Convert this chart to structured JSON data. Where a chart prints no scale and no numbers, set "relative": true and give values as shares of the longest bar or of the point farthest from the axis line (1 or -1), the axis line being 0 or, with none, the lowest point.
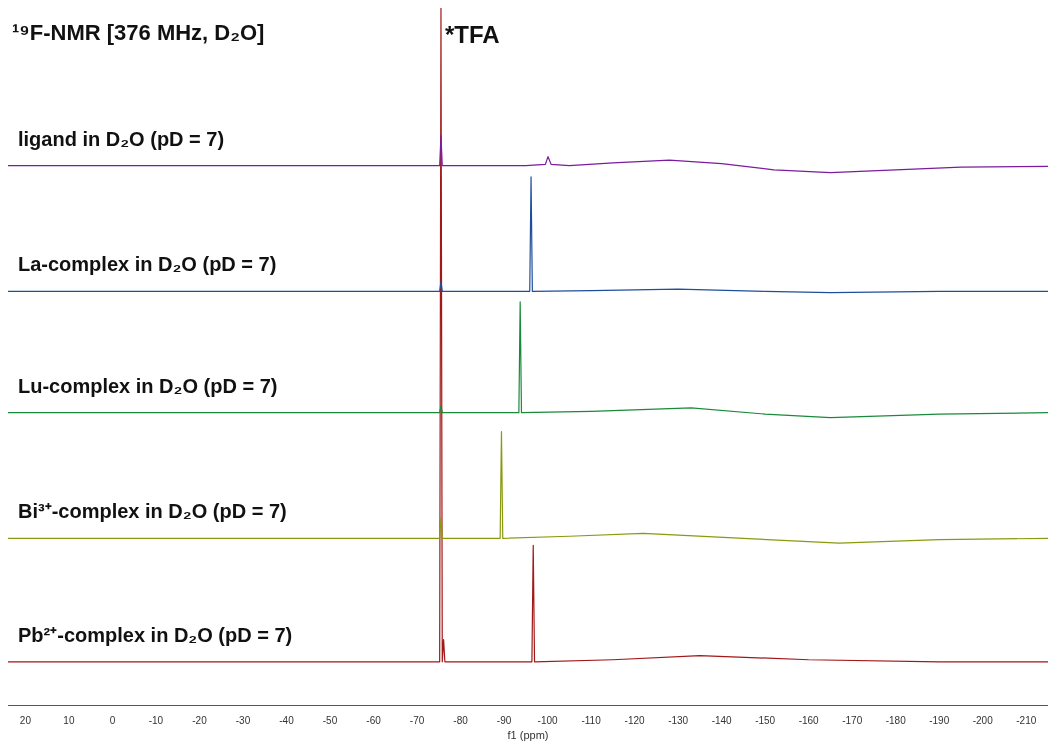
{
  "chart_data": {
    "type": "line",
    "title": "¹⁹F-NMR [376 MHz, D₂O]",
    "xlabel": "f1 (ppm)",
    "relative": true,
    "legend": false,
    "grid": false,
    "marker": "none",
    "tick_labels": "x",
    "xlim": [
      24,
      -215
    ],
    "xticks": [
      20,
      10,
      0,
      -10,
      -20,
      -30,
      -40,
      -50,
      -60,
      -70,
      -80,
      -90,
      -100,
      -110,
      -120,
      -130,
      -140,
      -150,
      -160,
      -170,
      -180,
      -190,
      -200,
      -210
    ],
    "annotations": [
      {
        "text": "*TFA",
        "x": -75.5,
        "y": 0.97
      }
    ],
    "series": [
      {
        "name": "ligand in D₂O (pD = 7)",
        "color": "#7b1c9c",
        "x": [
          24,
          -60,
          -75.2,
          -75.5,
          -75.8,
          -95,
          -99.5,
          -100.1,
          -100.8,
          -105,
          -115,
          -128,
          -140,
          -152,
          -165,
          -180,
          -195,
          -215
        ],
        "values": [
          0.774,
          0.774,
          0.774,
          0.817,
          0.774,
          0.774,
          0.776,
          0.787,
          0.776,
          0.774,
          0.778,
          0.782,
          0.777,
          0.768,
          0.764,
          0.768,
          0.772,
          0.773
        ]
      },
      {
        "name": "La-complex in D₂O (pD = 7)",
        "color": "#1f4e9a",
        "x": [
          24,
          -60,
          -75.2,
          -75.5,
          -75.8,
          -95.9,
          -96.2,
          -96.5,
          -110,
          -130,
          -150,
          -165,
          -190,
          -215
        ],
        "values": [
          0.594,
          0.594,
          0.594,
          0.608,
          0.594,
          0.594,
          0.758,
          0.594,
          0.595,
          0.597,
          0.594,
          0.592,
          0.594,
          0.594
        ]
      },
      {
        "name": "Lu-complex in D₂O (pD = 7)",
        "color": "#1a8a3a",
        "x": [
          24,
          -60,
          -75.2,
          -75.5,
          -75.8,
          -93.4,
          -93.7,
          -94,
          -110,
          -133,
          -150,
          -165,
          -190,
          -215
        ],
        "values": [
          0.42,
          0.42,
          0.42,
          0.43,
          0.42,
          0.42,
          0.579,
          0.42,
          0.422,
          0.427,
          0.418,
          0.413,
          0.418,
          0.42
        ]
      },
      {
        "name": "Bi³⁺-complex in D₂O (pD = 7)",
        "color": "#8a9a10",
        "x": [
          24,
          -60,
          -75.2,
          -75.5,
          -75.8,
          -89.1,
          -89.4,
          -89.7,
          -105,
          -122,
          -145,
          -167,
          -190,
          -215
        ],
        "values": [
          0.24,
          0.24,
          0.24,
          0.27,
          0.24,
          0.24,
          0.393,
          0.24,
          0.243,
          0.247,
          0.24,
          0.233,
          0.238,
          0.24
        ]
      },
      {
        "name": "Pb²⁺-complex in D₂O (pD = 7)",
        "color": "#a01818",
        "x": [
          24,
          -60,
          -75.2,
          -75.5,
          -75.8,
          -76.1,
          -76.4,
          -96.4,
          -96.7,
          -97,
          -115,
          -135,
          -160,
          -190,
          -215
        ],
        "values": [
          0.063,
          0.063,
          0.063,
          1.0,
          0.063,
          0.095,
          0.063,
          0.063,
          0.23,
          0.063,
          0.066,
          0.072,
          0.066,
          0.063,
          0.063
        ]
      }
    ]
  }
}
